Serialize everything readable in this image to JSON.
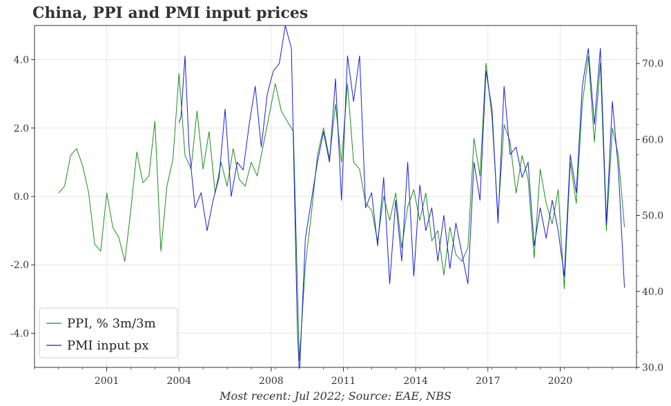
{
  "title": "China, PPI and PMI input prices",
  "footer": "Most recent: Jul 2022; Source: EAE, NBS",
  "chart_data": {
    "type": "line",
    "grid": true,
    "legend_position": "bottom-left",
    "x_ticks": [
      "2001",
      "2004",
      "2008",
      "2011",
      "2014",
      "2017",
      "2020"
    ],
    "y_left": {
      "lim": [
        -5.0,
        5.0
      ],
      "ticks": [
        "-4.0",
        "-2.0",
        "0.0",
        "2.0",
        "4.0"
      ]
    },
    "y_right": {
      "lim": [
        30.0,
        75.0
      ],
      "ticks": [
        "30.0",
        "40.0",
        "50.0",
        "60.0",
        "70.0"
      ]
    },
    "series": [
      {
        "name": "PPI, % 3m/3m",
        "color": "#1a8c1a",
        "axis": "left",
        "points": [
          [
            "1999-01",
            0.1
          ],
          [
            "1999-04",
            0.3
          ],
          [
            "1999-07",
            1.2
          ],
          [
            "1999-10",
            1.4
          ],
          [
            "2000-01",
            0.9
          ],
          [
            "2000-04",
            0.1
          ],
          [
            "2000-07",
            -1.4
          ],
          [
            "2000-10",
            -1.6
          ],
          [
            "2001-01",
            0.1
          ],
          [
            "2001-04",
            -0.9
          ],
          [
            "2001-07",
            -1.2
          ],
          [
            "2001-10",
            -1.9
          ],
          [
            "2002-01",
            -0.4
          ],
          [
            "2002-04",
            1.3
          ],
          [
            "2002-07",
            0.4
          ],
          [
            "2002-10",
            0.6
          ],
          [
            "2003-01",
            2.2
          ],
          [
            "2003-04",
            -1.6
          ],
          [
            "2003-07",
            0.3
          ],
          [
            "2003-10",
            1.1
          ],
          [
            "2004-01",
            3.6
          ],
          [
            "2004-04",
            1.2
          ],
          [
            "2004-07",
            0.8
          ],
          [
            "2004-10",
            2.5
          ],
          [
            "2005-01",
            0.8
          ],
          [
            "2005-04",
            1.9
          ],
          [
            "2005-07",
            0.1
          ],
          [
            "2005-10",
            1.0
          ],
          [
            "2006-01",
            0.3
          ],
          [
            "2006-04",
            1.4
          ],
          [
            "2006-07",
            0.5
          ],
          [
            "2006-10",
            0.3
          ],
          [
            "2007-01",
            1.0
          ],
          [
            "2007-04",
            0.6
          ],
          [
            "2007-07",
            1.5
          ],
          [
            "2007-10",
            2.4
          ],
          [
            "2008-01",
            3.3
          ],
          [
            "2008-04",
            2.5
          ],
          [
            "2008-07",
            2.2
          ],
          [
            "2008-10",
            1.9
          ],
          [
            "2009-01",
            -4.8
          ],
          [
            "2009-04",
            -2.0
          ],
          [
            "2009-07",
            -0.5
          ],
          [
            "2009-10",
            1.2
          ],
          [
            "2010-01",
            2.0
          ],
          [
            "2010-04",
            1.1
          ],
          [
            "2010-07",
            2.7
          ],
          [
            "2010-10",
            1.0
          ],
          [
            "2011-01",
            3.3
          ],
          [
            "2011-04",
            1.0
          ],
          [
            "2011-07",
            0.8
          ],
          [
            "2011-10",
            -0.2
          ],
          [
            "2012-01",
            -0.4
          ],
          [
            "2012-04",
            -1.3
          ],
          [
            "2012-07",
            0.0
          ],
          [
            "2012-10",
            -0.7
          ],
          [
            "2013-01",
            0.1
          ],
          [
            "2013-04",
            -1.5
          ],
          [
            "2013-07",
            -0.3
          ],
          [
            "2013-10",
            0.2
          ],
          [
            "2014-01",
            -0.7
          ],
          [
            "2014-04",
            0.1
          ],
          [
            "2014-07",
            -1.3
          ],
          [
            "2014-10",
            -1.0
          ],
          [
            "2015-01",
            -2.3
          ],
          [
            "2015-04",
            -0.9
          ],
          [
            "2015-07",
            -1.7
          ],
          [
            "2015-10",
            -1.9
          ],
          [
            "2016-01",
            -1.5
          ],
          [
            "2016-04",
            1.7
          ],
          [
            "2016-07",
            0.6
          ],
          [
            "2016-10",
            3.9
          ],
          [
            "2017-01",
            2.3
          ],
          [
            "2017-04",
            -0.6
          ],
          [
            "2017-07",
            2.1
          ],
          [
            "2017-10",
            1.6
          ],
          [
            "2018-01",
            0.1
          ],
          [
            "2018-04",
            1.2
          ],
          [
            "2018-07",
            0.5
          ],
          [
            "2018-10",
            -1.8
          ],
          [
            "2019-01",
            0.8
          ],
          [
            "2019-04",
            -0.2
          ],
          [
            "2019-07",
            -0.8
          ],
          [
            "2019-10",
            0.2
          ],
          [
            "2020-01",
            -2.7
          ],
          [
            "2020-04",
            1.0
          ],
          [
            "2020-07",
            -0.2
          ],
          [
            "2020-10",
            2.7
          ],
          [
            "2021-01",
            4.1
          ],
          [
            "2021-04",
            1.6
          ],
          [
            "2021-07",
            3.9
          ],
          [
            "2021-10",
            -1.0
          ],
          [
            "2022-01",
            2.0
          ],
          [
            "2022-04",
            1.2
          ],
          [
            "2022-07",
            -0.9
          ]
        ]
      },
      {
        "name": "PMI input px",
        "color": "#1a1ad9",
        "axis": "right",
        "points": [
          [
            "2004-01",
            62.2
          ],
          [
            "2004-02",
            63.0
          ],
          [
            "2004-04",
            71.0
          ],
          [
            "2004-06",
            59.0
          ],
          [
            "2004-09",
            51.0
          ],
          [
            "2004-12",
            53.0
          ],
          [
            "2005-03",
            48.0
          ],
          [
            "2005-06",
            52.0
          ],
          [
            "2005-09",
            55.0
          ],
          [
            "2005-12",
            64.0
          ],
          [
            "2006-03",
            52.5
          ],
          [
            "2006-06",
            57.0
          ],
          [
            "2006-09",
            56.0
          ],
          [
            "2006-12",
            62.0
          ],
          [
            "2007-03",
            67.0
          ],
          [
            "2007-06",
            59.0
          ],
          [
            "2007-09",
            66.0
          ],
          [
            "2007-12",
            69.0
          ],
          [
            "2008-03",
            70.0
          ],
          [
            "2008-06",
            75.0
          ],
          [
            "2008-09",
            72.0
          ],
          [
            "2008-12",
            35.0
          ],
          [
            "2009-01",
            29.0
          ],
          [
            "2009-04",
            47.0
          ],
          [
            "2009-07",
            52.0
          ],
          [
            "2009-10",
            57.0
          ],
          [
            "2010-01",
            61.0
          ],
          [
            "2010-04",
            57.0
          ],
          [
            "2010-07",
            68.0
          ],
          [
            "2010-10",
            52.0
          ],
          [
            "2011-01",
            71.0
          ],
          [
            "2011-04",
            65.0
          ],
          [
            "2011-07",
            71.0
          ],
          [
            "2011-10",
            51.0
          ],
          [
            "2012-01",
            53.0
          ],
          [
            "2012-04",
            46.0
          ],
          [
            "2012-07",
            55.0
          ],
          [
            "2012-10",
            41.0
          ],
          [
            "2013-01",
            52.0
          ],
          [
            "2013-04",
            44.0
          ],
          [
            "2013-07",
            57.0
          ],
          [
            "2013-10",
            42.0
          ],
          [
            "2014-01",
            54.0
          ],
          [
            "2014-04",
            48.0
          ],
          [
            "2014-07",
            51.0
          ],
          [
            "2014-10",
            44.0
          ],
          [
            "2015-01",
            50.0
          ],
          [
            "2015-04",
            43.0
          ],
          [
            "2015-07",
            49.0
          ],
          [
            "2015-10",
            45.0
          ],
          [
            "2016-01",
            41.0
          ],
          [
            "2016-04",
            57.0
          ],
          [
            "2016-07",
            52.0
          ],
          [
            "2016-10",
            69.0
          ],
          [
            "2017-01",
            64.0
          ],
          [
            "2017-04",
            49.0
          ],
          [
            "2017-07",
            67.0
          ],
          [
            "2017-10",
            58.0
          ],
          [
            "2018-01",
            59.0
          ],
          [
            "2018-04",
            55.0
          ],
          [
            "2018-07",
            57.0
          ],
          [
            "2018-10",
            46.0
          ],
          [
            "2019-01",
            51.0
          ],
          [
            "2019-04",
            47.0
          ],
          [
            "2019-07",
            52.0
          ],
          [
            "2019-10",
            48.0
          ],
          [
            "2020-01",
            42.0
          ],
          [
            "2020-04",
            58.0
          ],
          [
            "2020-07",
            53.0
          ],
          [
            "2020-10",
            67.0
          ],
          [
            "2021-01",
            72.0
          ],
          [
            "2021-04",
            62.0
          ],
          [
            "2021-07",
            72.0
          ],
          [
            "2021-10",
            49.0
          ],
          [
            "2022-01",
            65.0
          ],
          [
            "2022-04",
            56.0
          ],
          [
            "2022-07",
            40.5
          ]
        ]
      }
    ]
  }
}
